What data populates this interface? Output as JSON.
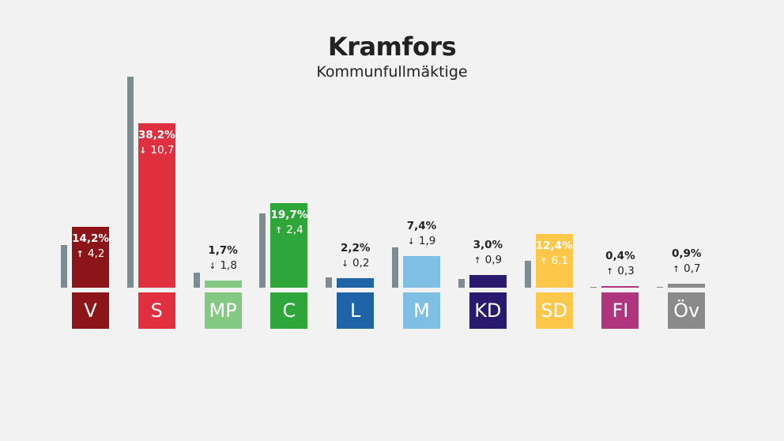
{
  "chart_data": {
    "type": "bar",
    "title": "Kramfors",
    "subtitle": "Kommunfullmäktige",
    "ymax": 50,
    "bars": [
      {
        "party": "V",
        "value": 14.2,
        "value_label": "14,2%",
        "change": 4.2,
        "change_label": "4,2",
        "direction": "up",
        "color": "#8b1518",
        "inside": true
      },
      {
        "party": "S",
        "value": 38.2,
        "value_label": "38,2%",
        "change": -10.7,
        "change_label": "10,7",
        "direction": "down",
        "color": "#e0303f",
        "inside": true
      },
      {
        "party": "MP",
        "value": 1.7,
        "value_label": "1,7%",
        "change": -1.8,
        "change_label": "1,8",
        "direction": "down",
        "color": "#83c984",
        "inside": false
      },
      {
        "party": "C",
        "value": 19.7,
        "value_label": "19,7%",
        "change": 2.4,
        "change_label": "2,4",
        "direction": "up",
        "color": "#2ea63a",
        "inside": true
      },
      {
        "party": "L",
        "value": 2.2,
        "value_label": "2,2%",
        "change": -0.2,
        "change_label": "0,2",
        "direction": "down",
        "color": "#1f64a6",
        "inside": false
      },
      {
        "party": "M",
        "value": 7.4,
        "value_label": "7,4%",
        "change": -1.9,
        "change_label": "1,9",
        "direction": "down",
        "color": "#80bfe4",
        "inside": false
      },
      {
        "party": "KD",
        "value": 3.0,
        "value_label": "3,0%",
        "change": 0.9,
        "change_label": "0,9",
        "direction": "up",
        "color": "#2a1a6e",
        "inside": false
      },
      {
        "party": "SD",
        "value": 12.4,
        "value_label": "12,4%",
        "change": 6.1,
        "change_label": "6,1",
        "direction": "up",
        "color": "#fdc84a",
        "inside": true
      },
      {
        "party": "FI",
        "value": 0.4,
        "value_label": "0,4%",
        "change": 0.3,
        "change_label": "0,3",
        "direction": "up",
        "color": "#b0357f",
        "inside": false
      },
      {
        "party": "Öv",
        "value": 0.9,
        "value_label": "0,9%",
        "change": 0.7,
        "change_label": "0,7",
        "direction": "up",
        "color": "#8a8a8a",
        "inside": false
      }
    ]
  }
}
